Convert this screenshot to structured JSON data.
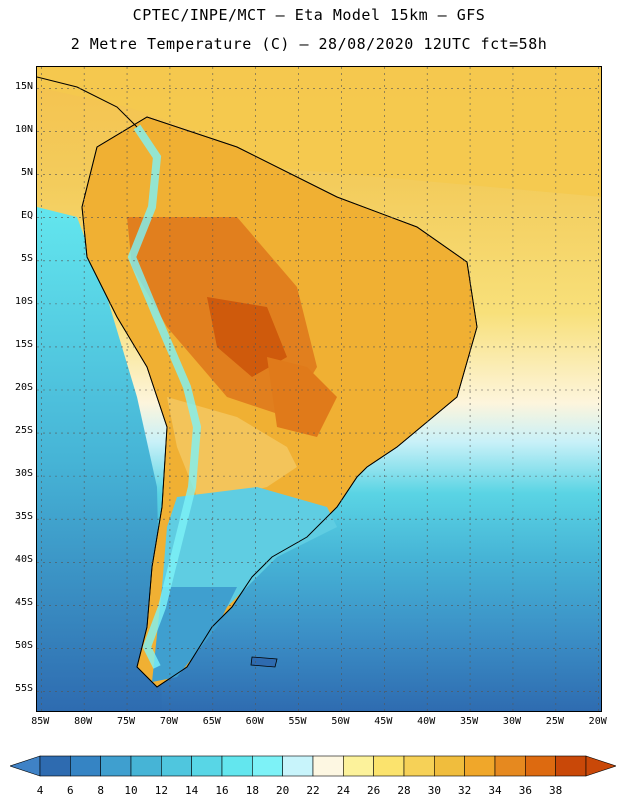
{
  "header": {
    "line1": "CPTEC/INPE/MCT –  Eta Model 15km – GFS",
    "line2": "2 Metre Temperature (C) – 28/08/2020 12UTC fct=58h"
  },
  "map": {
    "lat_labels": [
      "15N",
      "10N",
      "5N",
      "EQ",
      "5S",
      "10S",
      "15S",
      "20S",
      "25S",
      "30S",
      "35S",
      "40S",
      "45S",
      "50S",
      "55S"
    ],
    "lat_values": [
      15,
      10,
      5,
      0,
      -5,
      -10,
      -15,
      -20,
      -25,
      -30,
      -35,
      -40,
      -45,
      -50,
      -55
    ],
    "lon_labels": [
      "85W",
      "80W",
      "75W",
      "70W",
      "65W",
      "60W",
      "55W",
      "50W",
      "45W",
      "40W",
      "35W",
      "30W",
      "25W",
      "20W"
    ],
    "lon_values": [
      -85,
      -80,
      -75,
      -70,
      -65,
      -60,
      -55,
      -50,
      -45,
      -40,
      -35,
      -30,
      -25,
      -20
    ],
    "extent": {
      "lon_min": -85.5,
      "lon_max": -19.5,
      "lat_min": -57.5,
      "lat_max": 17.5
    }
  },
  "legend": {
    "labels": [
      "4",
      "6",
      "8",
      "10",
      "12",
      "14",
      "16",
      "18",
      "20",
      "22",
      "24",
      "26",
      "28",
      "30",
      "32",
      "34",
      "36",
      "38"
    ],
    "colors": [
      "#2e6bb0",
      "#3584c4",
      "#3f9fcf",
      "#46b4d6",
      "#4fc6de",
      "#58d6e6",
      "#63e6ee",
      "#7df2f7",
      "#c8f4fb",
      "#fdf7e2",
      "#fcf29b",
      "#fbe36d",
      "#f6d157",
      "#f0bd3d",
      "#f0a72a",
      "#e6891f",
      "#dd6a10",
      "#c94808"
    ],
    "under_color": "#3f82c6",
    "over_color": "#c94808"
  }
}
